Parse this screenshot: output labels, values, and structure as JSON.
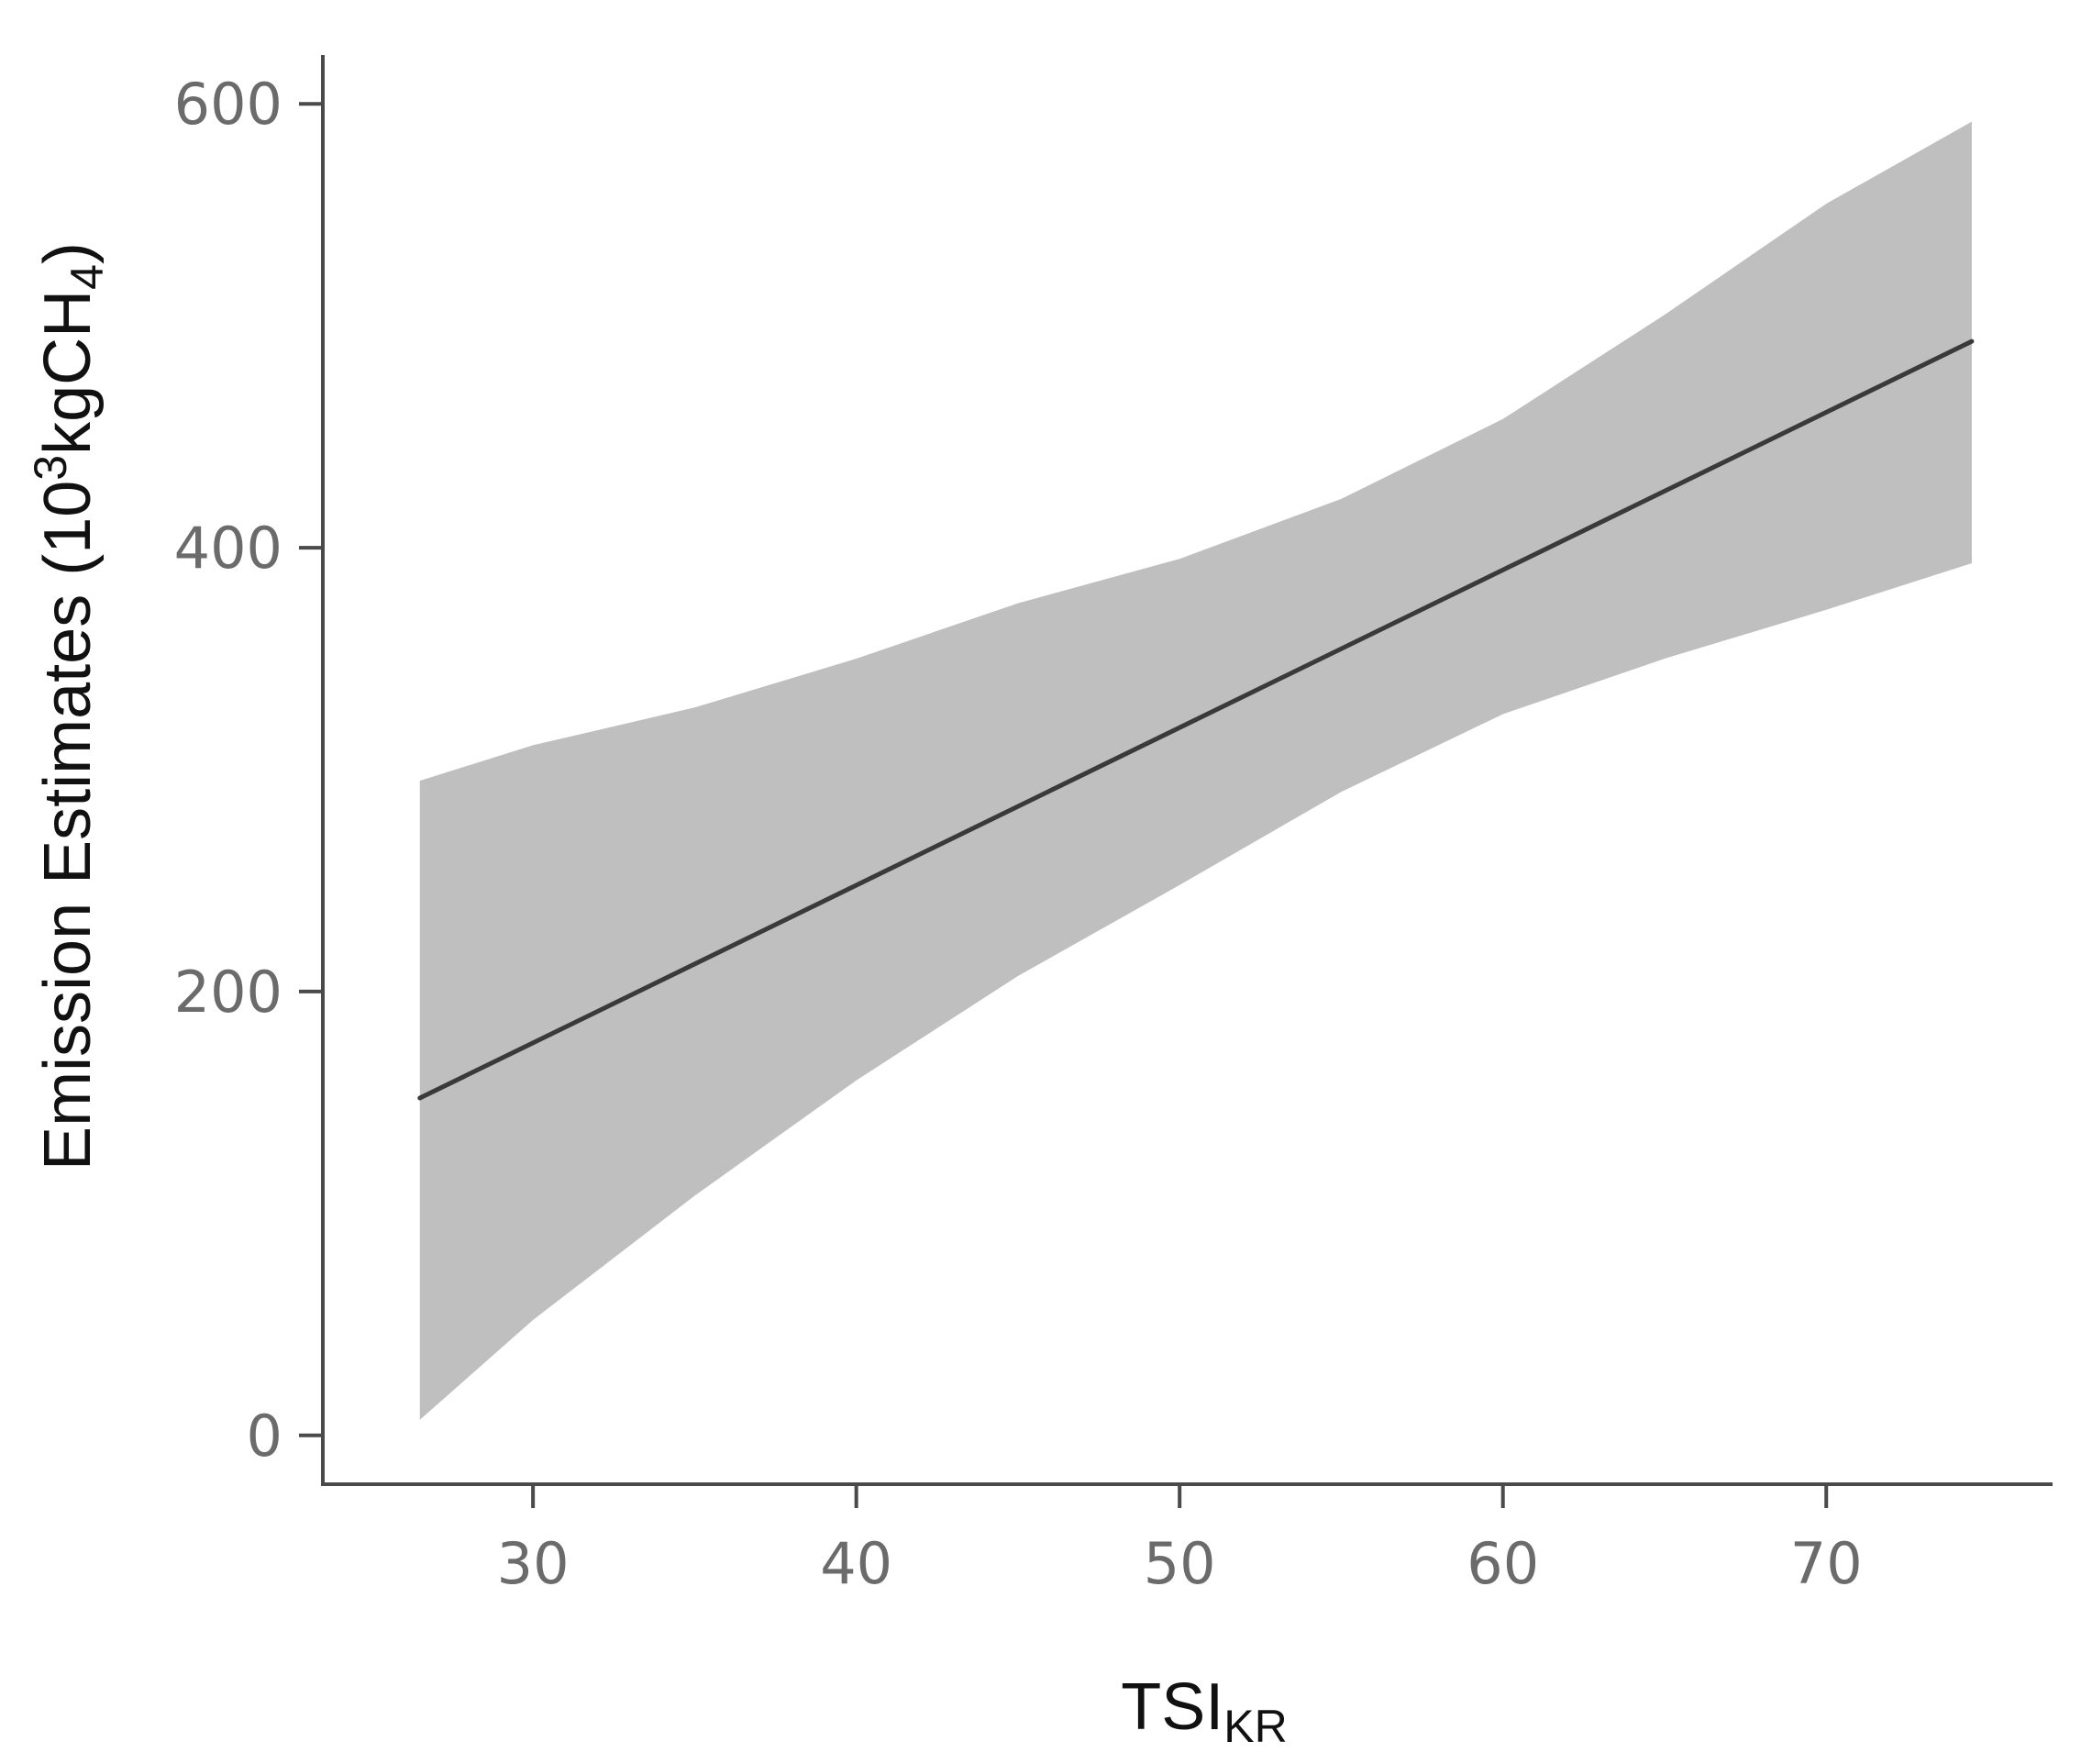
{
  "chart_data": {
    "type": "line",
    "title": "",
    "xlabel": {
      "main": "TSI",
      "sub": "KR"
    },
    "ylabel": {
      "before": "Emission Estimates (10",
      "sup": "3",
      "mid": "kgCH",
      "sub": "4",
      "after": ")"
    },
    "xlim": [
      23.5,
      77
    ],
    "ylim": [
      -22,
      622
    ],
    "x_ticks": [
      30,
      40,
      50,
      60,
      70
    ],
    "y_ticks": [
      0,
      200,
      400,
      600
    ],
    "grid": false,
    "legend": "none",
    "series": [
      {
        "x": [
          26.5,
          74.5
        ],
        "y": [
          152,
          493
        ]
      }
    ],
    "confidence_band": {
      "x": [
        26.5,
        30,
        35,
        40,
        45,
        50,
        55,
        60,
        65,
        70,
        74.5
      ],
      "lower": [
        7,
        52,
        108,
        160,
        207,
        248,
        290,
        325,
        350,
        372,
        393
      ],
      "upper": [
        295,
        311,
        328,
        350,
        375,
        395,
        422,
        458,
        505,
        555,
        592
      ]
    },
    "colors": {
      "line": "#3a3a3a",
      "band": "#bfbfbf",
      "axis": "#4a4a4a",
      "tick_label": "#6b6b6b"
    }
  }
}
